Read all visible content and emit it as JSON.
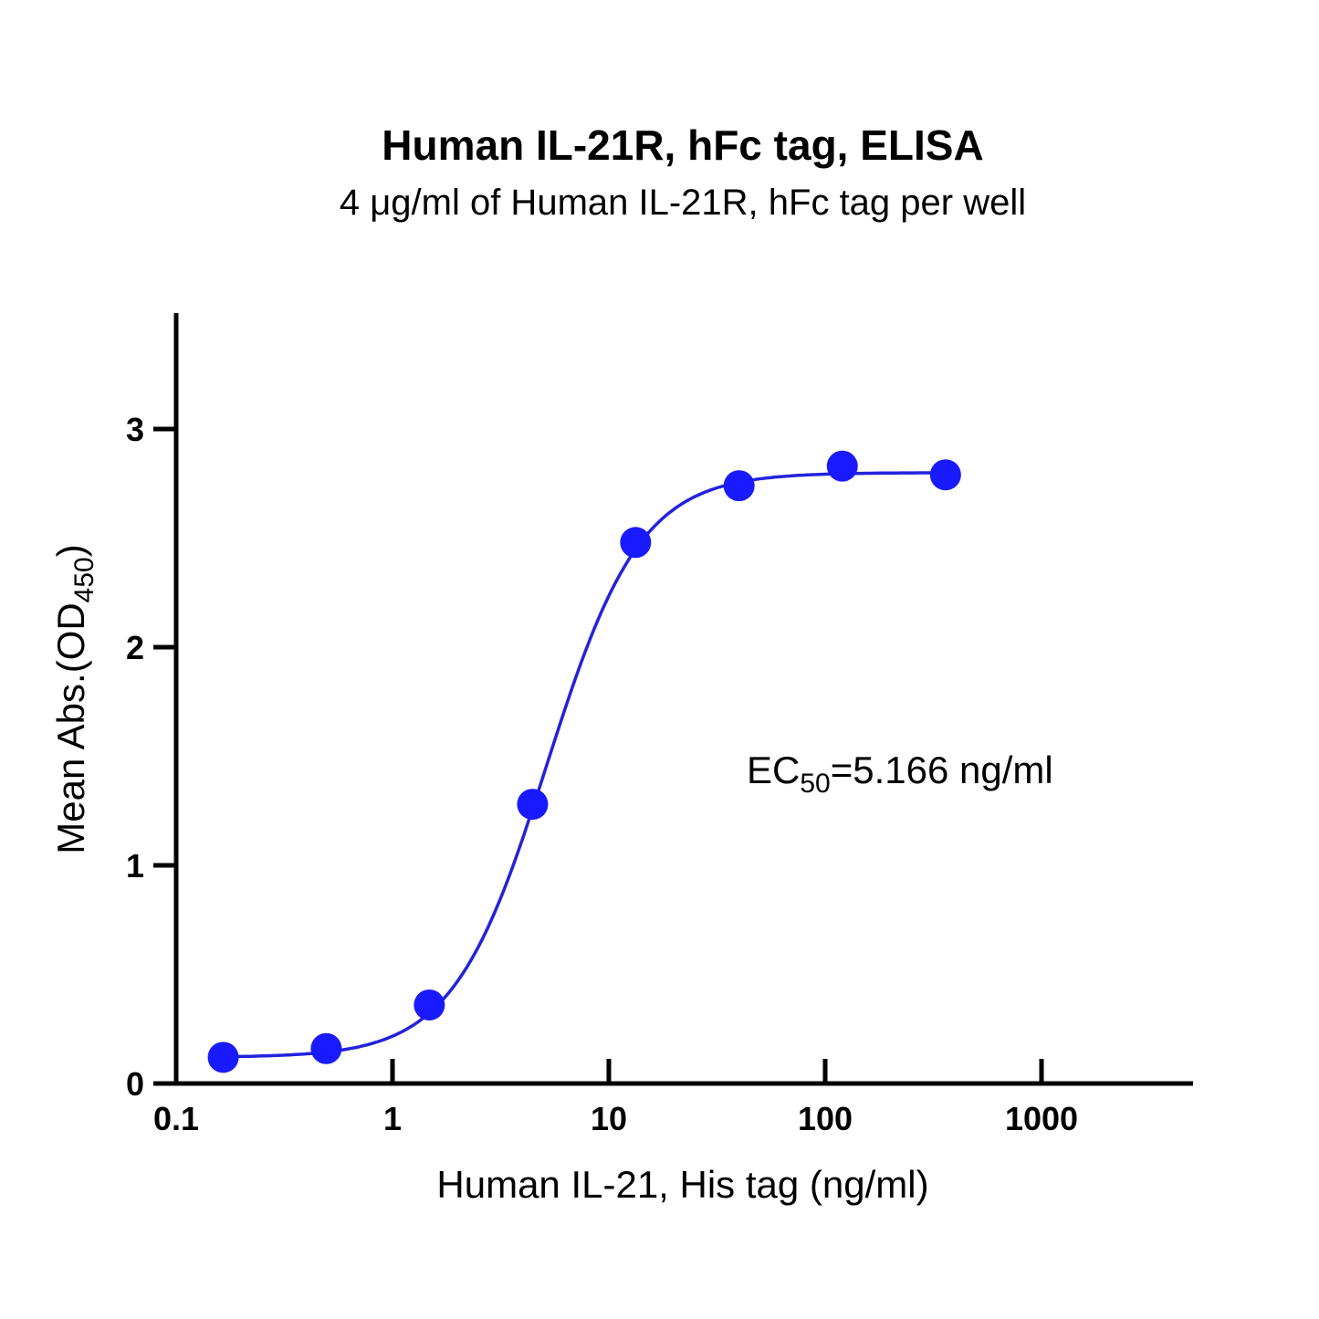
{
  "chart_data": {
    "type": "scatter",
    "title": "Human IL-21R, hFc tag, ELISA",
    "subtitle": "4 μg/ml of Human IL-21R, hFc tag per well",
    "xlabel": "Human IL-21, His tag (ng/ml)",
    "ylabel": {
      "main": "Mean Abs.(OD",
      "sub": "450",
      "close": ")"
    },
    "x_scale": "log",
    "xlim": [
      0.1,
      5000
    ],
    "ylim": [
      0,
      3.5
    ],
    "x_ticks": [
      0.1,
      1,
      10,
      100,
      1000
    ],
    "x_tick_labels": [
      "0.1",
      "1",
      "10",
      "100",
      "1000"
    ],
    "y_ticks": [
      0,
      1,
      2,
      3
    ],
    "y_tick_labels": [
      "0",
      "1",
      "2",
      "3"
    ],
    "grid": false,
    "series": [
      {
        "x": [
          0.165,
          0.494,
          1.48,
          4.44,
          13.3,
          40.0,
          120,
          360
        ],
        "y": [
          0.12,
          0.16,
          0.36,
          1.28,
          2.48,
          2.74,
          2.83,
          2.79
        ],
        "color": "#1a1aff"
      }
    ],
    "fit_curve": {
      "type": "4PL",
      "bottom": 0.12,
      "top": 2.8,
      "ec50": 5.166,
      "hill": 2.0,
      "color": "#2222dd"
    },
    "annotation": {
      "pre": "EC",
      "sub": "50",
      "post": "=5.166 ng/ml"
    }
  }
}
